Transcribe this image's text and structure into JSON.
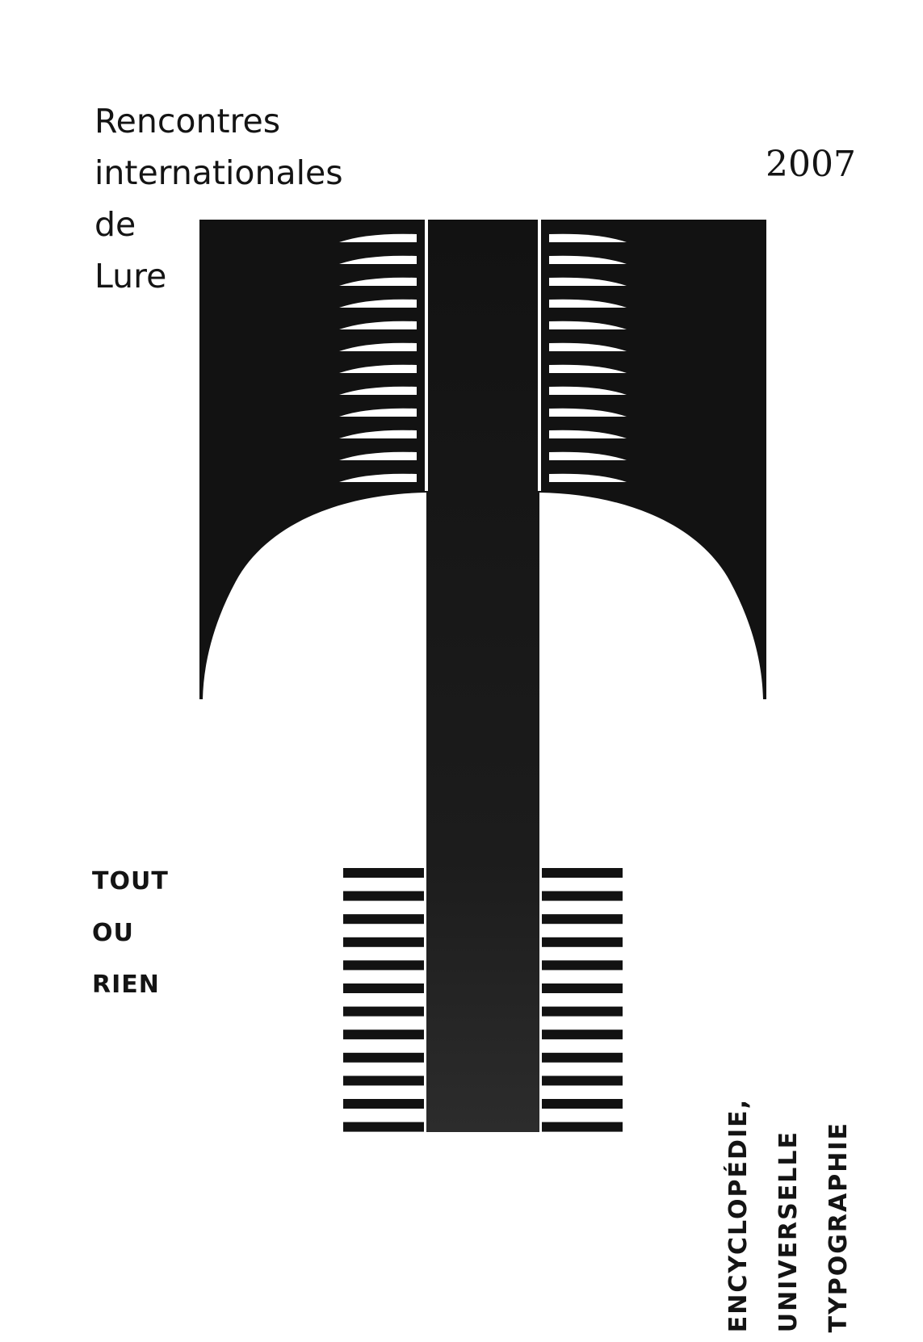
{
  "header": {
    "title_lines": [
      "Rencontres",
      "internationales",
      "de",
      "Lure"
    ],
    "year": "2007"
  },
  "motto": {
    "lines": [
      "TOUT",
      "OU",
      "RIEN"
    ]
  },
  "theme": {
    "lines": [
      "ENCYCLOPÉDIE,",
      "UNIVERSELLE",
      "TYPOGRAPHIE"
    ]
  },
  "artwork": {
    "icon": "letter-t-graphic",
    "color": "#121212"
  }
}
